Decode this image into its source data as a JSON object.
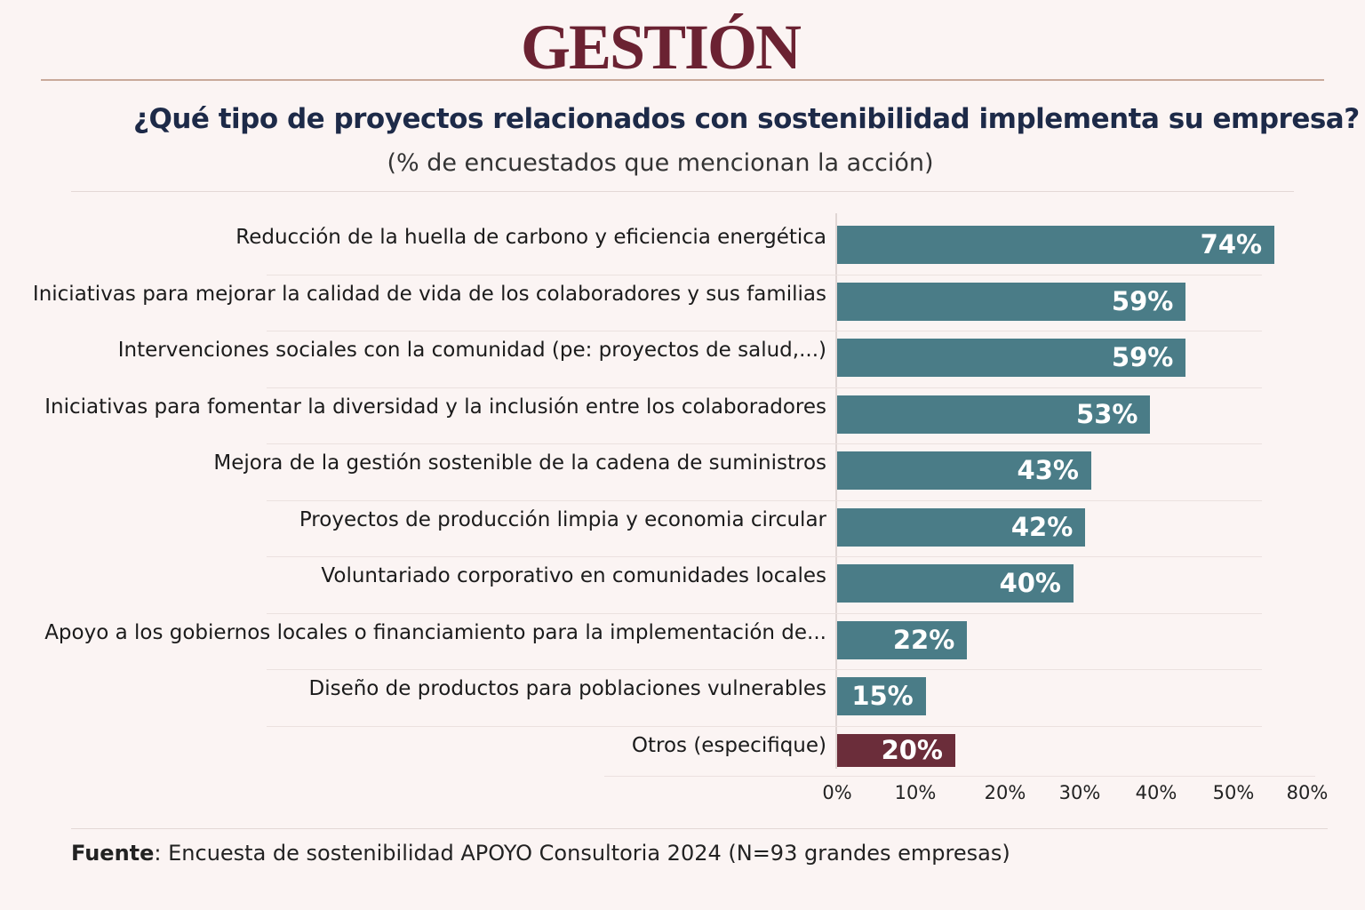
{
  "logo": "GESTIÓN",
  "chart_data": {
    "type": "bar",
    "orientation": "horizontal",
    "title": "¿Qué tipo de proyectos relacionados con sostenibilidad implementa su empresa?",
    "subtitle": "(% de encuestados que mencionan la acción)",
    "categories": [
      "Reducción de la huella de carbono y eficiencia energética",
      "Iniciativas para mejorar la calidad de vida de los colaboradores y sus familias",
      "Intervenciones sociales con la comunidad (pe: proyectos de salud,...)",
      "Iniciativas para fomentar la diversidad y la inclusión entre los colaboradores",
      "Mejora de la gestión sostenible de la cadena de suministros",
      "Proyectos de producción limpia y economia circular",
      "Voluntariado corporativo en comunidades locales",
      "Apoyo a los gobiernos locales o financiamiento para la implementación de...",
      "Diseño de productos para poblaciones vulnerables",
      "Otros (especifique)"
    ],
    "values": [
      74,
      59,
      59,
      53,
      43,
      42,
      40,
      22,
      15,
      20
    ],
    "value_labels": [
      "74%",
      "59%",
      "59%",
      "53%",
      "43%",
      "42%",
      "40%",
      "22%",
      "15%",
      "20%"
    ],
    "colors": [
      "#4a7c87",
      "#4a7c87",
      "#4a7c87",
      "#4a7c87",
      "#4a7c87",
      "#4a7c87",
      "#4a7c87",
      "#4a7c87",
      "#4a7c87",
      "#6b2d3a"
    ],
    "x_ticks": [
      "0%",
      "10%",
      "20%",
      "30%",
      "40%",
      "50%",
      "80%"
    ],
    "xlim": [
      0,
      80
    ],
    "grid": false,
    "legend": "none"
  },
  "source": {
    "label": "Fuente",
    "text": ": Encuesta de sostenibilidad APOYO Consultoria 2024 (N=93 grandes empresas)"
  }
}
